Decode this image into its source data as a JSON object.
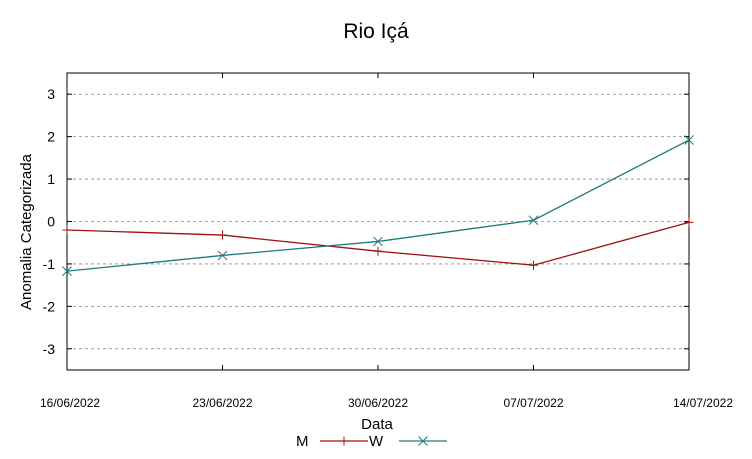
{
  "chart_data": {
    "type": "line",
    "title": "Rio Içá",
    "xlabel": "Data",
    "ylabel": "Anomalia Categorizada",
    "categories": [
      "16/06/2022",
      "23/06/2022",
      "30/06/2022",
      "07/07/2022",
      "14/07/2022"
    ],
    "yticks": [
      "-3",
      "-2",
      "-1",
      "0",
      "1",
      "2",
      "3"
    ],
    "ylim": [
      -3.5,
      3.5
    ],
    "grid": true,
    "legend_position": "bottom",
    "series": [
      {
        "name": "M",
        "color": "#a01010",
        "marker": "plus",
        "values": [
          -0.2,
          -0.32,
          -0.7,
          -1.03,
          -0.02
        ]
      },
      {
        "name": "W",
        "color": "#1f7a7a",
        "marker": "x",
        "values": [
          -1.17,
          -0.8,
          -0.47,
          0.03,
          1.92
        ]
      }
    ]
  }
}
